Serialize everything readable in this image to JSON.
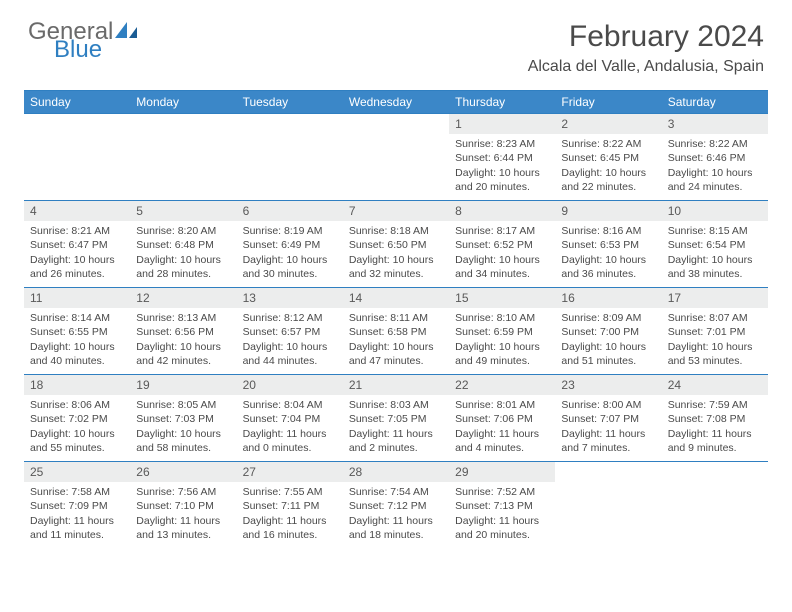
{
  "logo": {
    "general": "General",
    "blue": "Blue"
  },
  "title": "February 2024",
  "location": "Alcala del Valle, Andalusia, Spain",
  "colors": {
    "header_bg": "#3b87c8",
    "header_text": "#ffffff",
    "border": "#2f7fc1",
    "daynum_bg": "#eceded",
    "body_text": "#4a4a4a",
    "logo_gray": "#6a6a6a",
    "logo_blue": "#2f7fc1"
  },
  "weekdays": [
    "Sunday",
    "Monday",
    "Tuesday",
    "Wednesday",
    "Thursday",
    "Friday",
    "Saturday"
  ],
  "weeks": [
    [
      null,
      null,
      null,
      null,
      {
        "n": "1",
        "sr": "Sunrise: 8:23 AM",
        "ss": "Sunset: 6:44 PM",
        "dl1": "Daylight: 10 hours",
        "dl2": "and 20 minutes."
      },
      {
        "n": "2",
        "sr": "Sunrise: 8:22 AM",
        "ss": "Sunset: 6:45 PM",
        "dl1": "Daylight: 10 hours",
        "dl2": "and 22 minutes."
      },
      {
        "n": "3",
        "sr": "Sunrise: 8:22 AM",
        "ss": "Sunset: 6:46 PM",
        "dl1": "Daylight: 10 hours",
        "dl2": "and 24 minutes."
      }
    ],
    [
      {
        "n": "4",
        "sr": "Sunrise: 8:21 AM",
        "ss": "Sunset: 6:47 PM",
        "dl1": "Daylight: 10 hours",
        "dl2": "and 26 minutes."
      },
      {
        "n": "5",
        "sr": "Sunrise: 8:20 AM",
        "ss": "Sunset: 6:48 PM",
        "dl1": "Daylight: 10 hours",
        "dl2": "and 28 minutes."
      },
      {
        "n": "6",
        "sr": "Sunrise: 8:19 AM",
        "ss": "Sunset: 6:49 PM",
        "dl1": "Daylight: 10 hours",
        "dl2": "and 30 minutes."
      },
      {
        "n": "7",
        "sr": "Sunrise: 8:18 AM",
        "ss": "Sunset: 6:50 PM",
        "dl1": "Daylight: 10 hours",
        "dl2": "and 32 minutes."
      },
      {
        "n": "8",
        "sr": "Sunrise: 8:17 AM",
        "ss": "Sunset: 6:52 PM",
        "dl1": "Daylight: 10 hours",
        "dl2": "and 34 minutes."
      },
      {
        "n": "9",
        "sr": "Sunrise: 8:16 AM",
        "ss": "Sunset: 6:53 PM",
        "dl1": "Daylight: 10 hours",
        "dl2": "and 36 minutes."
      },
      {
        "n": "10",
        "sr": "Sunrise: 8:15 AM",
        "ss": "Sunset: 6:54 PM",
        "dl1": "Daylight: 10 hours",
        "dl2": "and 38 minutes."
      }
    ],
    [
      {
        "n": "11",
        "sr": "Sunrise: 8:14 AM",
        "ss": "Sunset: 6:55 PM",
        "dl1": "Daylight: 10 hours",
        "dl2": "and 40 minutes."
      },
      {
        "n": "12",
        "sr": "Sunrise: 8:13 AM",
        "ss": "Sunset: 6:56 PM",
        "dl1": "Daylight: 10 hours",
        "dl2": "and 42 minutes."
      },
      {
        "n": "13",
        "sr": "Sunrise: 8:12 AM",
        "ss": "Sunset: 6:57 PM",
        "dl1": "Daylight: 10 hours",
        "dl2": "and 44 minutes."
      },
      {
        "n": "14",
        "sr": "Sunrise: 8:11 AM",
        "ss": "Sunset: 6:58 PM",
        "dl1": "Daylight: 10 hours",
        "dl2": "and 47 minutes."
      },
      {
        "n": "15",
        "sr": "Sunrise: 8:10 AM",
        "ss": "Sunset: 6:59 PM",
        "dl1": "Daylight: 10 hours",
        "dl2": "and 49 minutes."
      },
      {
        "n": "16",
        "sr": "Sunrise: 8:09 AM",
        "ss": "Sunset: 7:00 PM",
        "dl1": "Daylight: 10 hours",
        "dl2": "and 51 minutes."
      },
      {
        "n": "17",
        "sr": "Sunrise: 8:07 AM",
        "ss": "Sunset: 7:01 PM",
        "dl1": "Daylight: 10 hours",
        "dl2": "and 53 minutes."
      }
    ],
    [
      {
        "n": "18",
        "sr": "Sunrise: 8:06 AM",
        "ss": "Sunset: 7:02 PM",
        "dl1": "Daylight: 10 hours",
        "dl2": "and 55 minutes."
      },
      {
        "n": "19",
        "sr": "Sunrise: 8:05 AM",
        "ss": "Sunset: 7:03 PM",
        "dl1": "Daylight: 10 hours",
        "dl2": "and 58 minutes."
      },
      {
        "n": "20",
        "sr": "Sunrise: 8:04 AM",
        "ss": "Sunset: 7:04 PM",
        "dl1": "Daylight: 11 hours",
        "dl2": "and 0 minutes."
      },
      {
        "n": "21",
        "sr": "Sunrise: 8:03 AM",
        "ss": "Sunset: 7:05 PM",
        "dl1": "Daylight: 11 hours",
        "dl2": "and 2 minutes."
      },
      {
        "n": "22",
        "sr": "Sunrise: 8:01 AM",
        "ss": "Sunset: 7:06 PM",
        "dl1": "Daylight: 11 hours",
        "dl2": "and 4 minutes."
      },
      {
        "n": "23",
        "sr": "Sunrise: 8:00 AM",
        "ss": "Sunset: 7:07 PM",
        "dl1": "Daylight: 11 hours",
        "dl2": "and 7 minutes."
      },
      {
        "n": "24",
        "sr": "Sunrise: 7:59 AM",
        "ss": "Sunset: 7:08 PM",
        "dl1": "Daylight: 11 hours",
        "dl2": "and 9 minutes."
      }
    ],
    [
      {
        "n": "25",
        "sr": "Sunrise: 7:58 AM",
        "ss": "Sunset: 7:09 PM",
        "dl1": "Daylight: 11 hours",
        "dl2": "and 11 minutes."
      },
      {
        "n": "26",
        "sr": "Sunrise: 7:56 AM",
        "ss": "Sunset: 7:10 PM",
        "dl1": "Daylight: 11 hours",
        "dl2": "and 13 minutes."
      },
      {
        "n": "27",
        "sr": "Sunrise: 7:55 AM",
        "ss": "Sunset: 7:11 PM",
        "dl1": "Daylight: 11 hours",
        "dl2": "and 16 minutes."
      },
      {
        "n": "28",
        "sr": "Sunrise: 7:54 AM",
        "ss": "Sunset: 7:12 PM",
        "dl1": "Daylight: 11 hours",
        "dl2": "and 18 minutes."
      },
      {
        "n": "29",
        "sr": "Sunrise: 7:52 AM",
        "ss": "Sunset: 7:13 PM",
        "dl1": "Daylight: 11 hours",
        "dl2": "and 20 minutes."
      },
      null,
      null
    ]
  ]
}
